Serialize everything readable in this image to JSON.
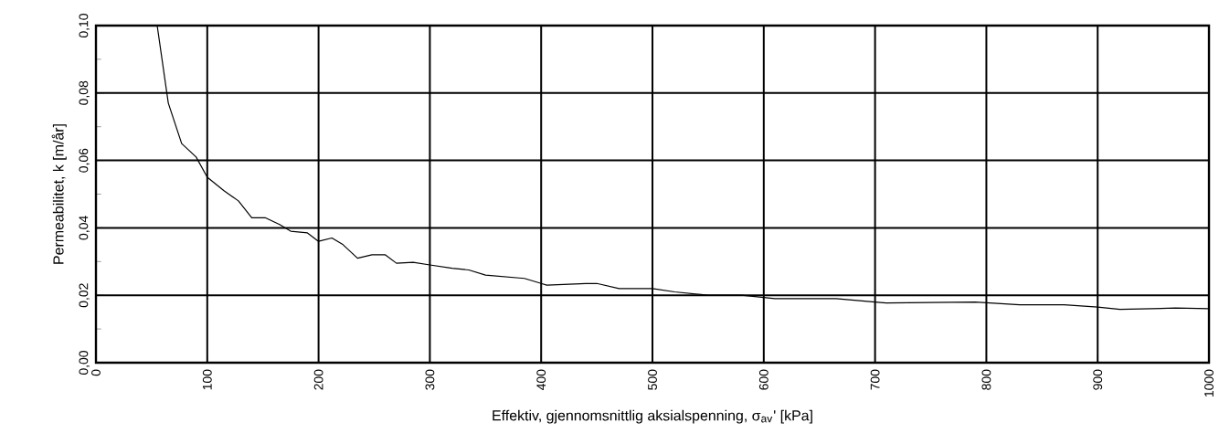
{
  "chart_data": {
    "type": "line",
    "xlabel": "Effektiv, gjennomsnittlig aksialspenning, σ$_{av}$'  [kPa]",
    "ylabel": "Permeabilitet, k [m/år]",
    "x": [
      55,
      65,
      77,
      90,
      100,
      115,
      128,
      140,
      152,
      165,
      175,
      190,
      200,
      212,
      222,
      235,
      248,
      260,
      270,
      285,
      300,
      320,
      335,
      350,
      385,
      400,
      405,
      440,
      450,
      470,
      500,
      520,
      550,
      580,
      610,
      665,
      700,
      710,
      790,
      830,
      870,
      900,
      920,
      970,
      1000
    ],
    "series": [
      {
        "color": "#000000",
        "values": [
          0.1,
          0.077,
          0.065,
          0.061,
          0.055,
          0.051,
          0.048,
          0.043,
          0.043,
          0.041,
          0.039,
          0.0385,
          0.036,
          0.037,
          0.035,
          0.031,
          0.032,
          0.032,
          0.0295,
          0.0298,
          0.029,
          0.028,
          0.0275,
          0.026,
          0.025,
          0.0235,
          0.023,
          0.0235,
          0.0235,
          0.022,
          0.022,
          0.021,
          0.02,
          0.02,
          0.019,
          0.019,
          0.018,
          0.0177,
          0.018,
          0.0172,
          0.0172,
          0.0165,
          0.0158,
          0.0162,
          0.016
        ]
      }
    ],
    "xlim": [
      0,
      1000
    ],
    "ylim": [
      0,
      0.1
    ],
    "xticks": [
      0,
      100,
      200,
      300,
      400,
      500,
      600,
      700,
      800,
      900,
      1000
    ],
    "yticks": [
      {
        "value": 0,
        "label": "0,00"
      },
      {
        "value": 0.02,
        "label": "0,02"
      },
      {
        "value": 0.04,
        "label": "0,04"
      },
      {
        "value": 0.06,
        "label": "0,06"
      },
      {
        "value": 0.08,
        "label": "0,08"
      },
      {
        "value": 0.1,
        "label": "0,10"
      }
    ],
    "grid": true,
    "marker": "none",
    "line_style": "solid"
  }
}
